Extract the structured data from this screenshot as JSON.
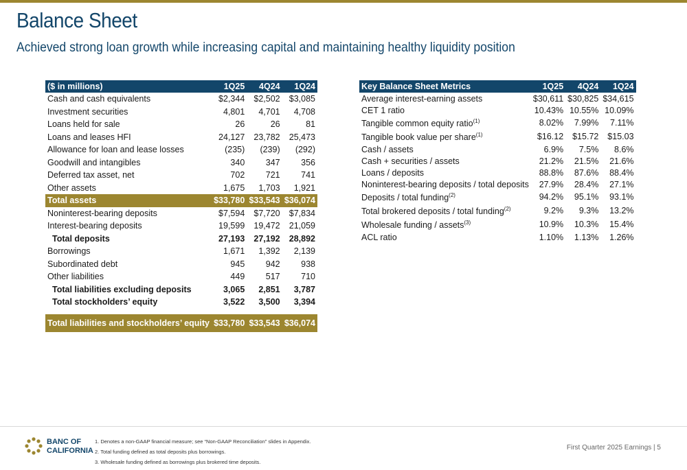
{
  "header": {
    "title": "Balance Sheet",
    "subtitle": "Achieved strong loan growth while increasing capital and maintaining healthy liquidity position"
  },
  "balance_sheet": {
    "columns": [
      "($ in millions)",
      "1Q25",
      "4Q24",
      "1Q24"
    ],
    "rows": [
      {
        "label": "Cash and cash equivalents",
        "values": [
          "$2,344",
          "$2,502",
          "$3,085"
        ],
        "style": "normal"
      },
      {
        "label": "Investment securities",
        "values": [
          "4,801",
          "4,701",
          "4,708"
        ],
        "style": "normal"
      },
      {
        "label": "Loans held for sale",
        "values": [
          "26",
          "26",
          "81"
        ],
        "style": "normal"
      },
      {
        "label": "Loans and leases HFI",
        "values": [
          "24,127",
          "23,782",
          "25,473"
        ],
        "style": "normal"
      },
      {
        "label": "Allowance for loan and lease losses",
        "values": [
          "(235)",
          "(239)",
          "(292)"
        ],
        "style": "normal"
      },
      {
        "label": "Goodwill and intangibles",
        "values": [
          "340",
          "347",
          "356"
        ],
        "style": "normal"
      },
      {
        "label": "Deferred tax asset, net",
        "values": [
          "702",
          "721",
          "741"
        ],
        "style": "normal"
      },
      {
        "label": "Other assets",
        "values": [
          "1,675",
          "1,703",
          "1,921"
        ],
        "style": "normal"
      },
      {
        "label": "Total assets",
        "values": [
          "$33,780",
          "$33,543",
          "$36,074"
        ],
        "style": "gold"
      },
      {
        "label": "Noninterest-bearing deposits",
        "values": [
          "$7,594",
          "$7,720",
          "$7,834"
        ],
        "style": "normal"
      },
      {
        "label": "Interest-bearing deposits",
        "values": [
          "19,599",
          "19,472",
          "21,059"
        ],
        "style": "normal"
      },
      {
        "label": "Total deposits",
        "values": [
          "27,193",
          "27,192",
          "28,892"
        ],
        "style": "bold"
      },
      {
        "label": "Borrowings",
        "values": [
          "1,671",
          "1,392",
          "2,139"
        ],
        "style": "normal"
      },
      {
        "label": "Subordinated debt",
        "values": [
          "945",
          "942",
          "938"
        ],
        "style": "normal"
      },
      {
        "label": "Other liabilities",
        "values": [
          "449",
          "517",
          "710"
        ],
        "style": "normal"
      },
      {
        "label": "Total liabilities excluding deposits",
        "values": [
          "3,065",
          "2,851",
          "3,787"
        ],
        "style": "bold"
      },
      {
        "label": "Total stockholders’ equity",
        "values": [
          "3,522",
          "3,500",
          "3,394"
        ],
        "style": "bold"
      },
      {
        "label": "Total liabilities and stockholders’ equity",
        "values": [
          "$33,780",
          "$33,543",
          "$36,074"
        ],
        "style": "gold-final"
      }
    ]
  },
  "key_metrics": {
    "columns": [
      "Key Balance Sheet Metrics",
      "1Q25",
      "4Q24",
      "1Q24"
    ],
    "rows": [
      {
        "label": "Average interest-earning assets",
        "sup": "",
        "values": [
          "$30,611",
          "$30,825",
          "$34,615"
        ]
      },
      {
        "label": "CET 1 ratio",
        "sup": "",
        "values": [
          "10.43%",
          "10.55%",
          "10.09%"
        ]
      },
      {
        "label": "Tangible common equity ratio",
        "sup": "(1)",
        "values": [
          "8.02%",
          "7.99%",
          "7.11%"
        ]
      },
      {
        "label": "Tangible book value per share",
        "sup": "(1)",
        "values": [
          "$16.12",
          "$15.72",
          "$15.03"
        ]
      },
      {
        "label": "Cash / assets",
        "sup": "",
        "values": [
          "6.9%",
          "7.5%",
          "8.6%"
        ]
      },
      {
        "label": "Cash + securities / assets",
        "sup": "",
        "values": [
          "21.2%",
          "21.5%",
          "21.6%"
        ]
      },
      {
        "label": "Loans / deposits",
        "sup": "",
        "values": [
          "88.8%",
          "87.6%",
          "88.4%"
        ]
      },
      {
        "label": "Noninterest-bearing deposits / total deposits",
        "sup": "",
        "values": [
          "27.9%",
          "28.4%",
          "27.1%"
        ]
      },
      {
        "label": "Deposits / total funding",
        "sup": "(2)",
        "values": [
          "94.2%",
          "95.1%",
          "93.1%"
        ]
      },
      {
        "label": "Total brokered deposits / total funding",
        "sup": "(2)",
        "values": [
          "9.2%",
          "9.3%",
          "13.2%"
        ]
      },
      {
        "label": "Wholesale funding / assets",
        "sup": "(3)",
        "values": [
          "10.9%",
          "10.3%",
          "15.4%"
        ]
      },
      {
        "label": "ACL ratio",
        "sup": "",
        "values": [
          "1.10%",
          "1.13%",
          "1.26%"
        ]
      }
    ]
  },
  "footer": {
    "logo_line1": "BANC OF",
    "logo_line2": "CALIFORNIA",
    "notes": [
      "1.  Denotes a non-GAAP financial measure; see “Non-GAAP Reconciliation” slides in Appendix.",
      "2.  Total funding defined as total deposits plus borrowings.",
      "3.  Wholesale funding defined as borrowings plus brokered time deposits."
    ],
    "page_label": "First Quarter 2025 Earnings | 5"
  },
  "colors": {
    "navy": "#13466a",
    "gold": "#9c8630"
  }
}
